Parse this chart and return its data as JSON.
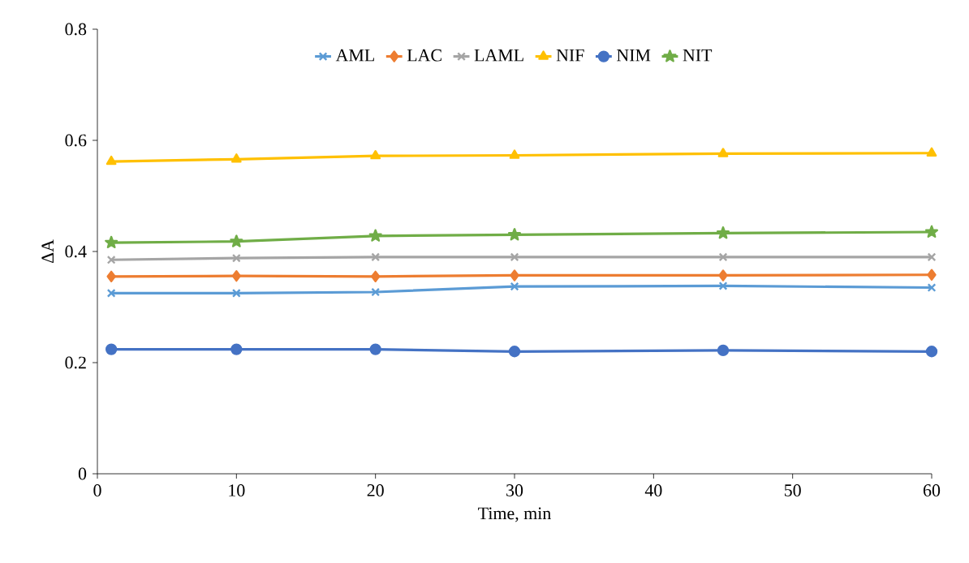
{
  "chart_data": {
    "type": "line",
    "xlabel": "Time, min",
    "ylabel": "ΔA",
    "xlim": [
      0,
      60
    ],
    "xticks": [
      0,
      10,
      20,
      30,
      40,
      50,
      60
    ],
    "ylim": [
      0,
      0.8
    ],
    "yticks": [
      0,
      0.2,
      0.4,
      0.6,
      0.8
    ],
    "grid": false,
    "legend": "top",
    "x": [
      1,
      10,
      20,
      30,
      45,
      60
    ],
    "series": [
      {
        "name": "AML",
        "color": "#5b9bd5",
        "marker": "cross",
        "values": [
          0.325,
          0.325,
          0.327,
          0.337,
          0.338,
          0.335
        ]
      },
      {
        "name": "LAC",
        "color": "#ed7d31",
        "marker": "diamond",
        "values": [
          0.355,
          0.356,
          0.355,
          0.357,
          0.357,
          0.358
        ]
      },
      {
        "name": "LAML",
        "color": "#a5a5a5",
        "marker": "cross",
        "values": [
          0.385,
          0.388,
          0.39,
          0.39,
          0.39,
          0.39
        ]
      },
      {
        "name": "NIF",
        "color": "#ffc000",
        "marker": "triangle",
        "values": [
          0.562,
          0.566,
          0.572,
          0.573,
          0.576,
          0.577
        ]
      },
      {
        "name": "NIM",
        "color": "#4472c4",
        "marker": "circle",
        "values": [
          0.224,
          0.224,
          0.224,
          0.22,
          0.222,
          0.22
        ]
      },
      {
        "name": "NIT",
        "color": "#70ad47",
        "marker": "star",
        "values": [
          0.416,
          0.418,
          0.428,
          0.43,
          0.433,
          0.435
        ]
      }
    ]
  }
}
